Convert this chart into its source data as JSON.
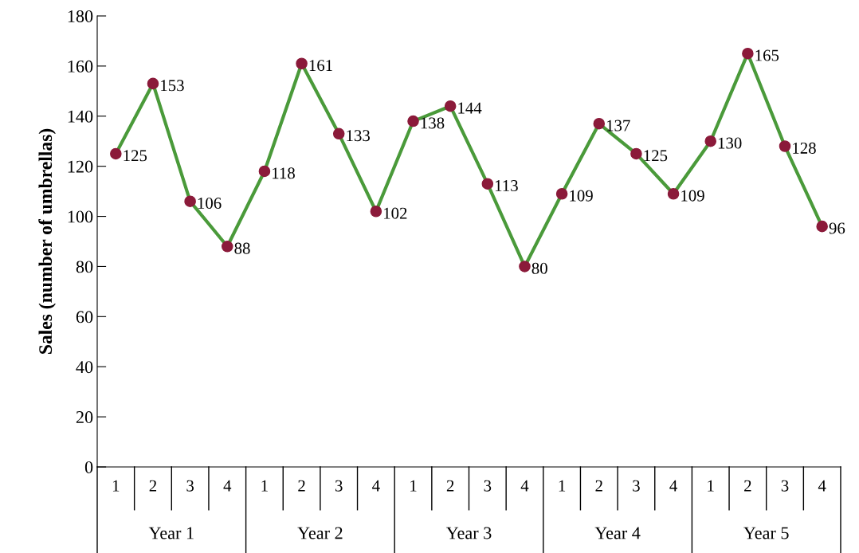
{
  "chart_data": {
    "type": "line",
    "ylabel": "Sales (number of umbrellas)",
    "categories": [
      "1",
      "2",
      "3",
      "4",
      "1",
      "2",
      "3",
      "4",
      "1",
      "2",
      "3",
      "4",
      "1",
      "2",
      "3",
      "4",
      "1",
      "2",
      "3",
      "4"
    ],
    "series": [
      {
        "color": "#4a9a3a",
        "colors": [
          "#8b1a3a",
          "#8b1a3a",
          "#8b1a3a",
          "#8b1a3a",
          "#8b1a3a",
          "#8b1a3a",
          "#8b1a3a",
          "#8b1a3a",
          "#8b1a3a",
          "#8b1a3a",
          "#8b1a3a",
          "#8b1a3a",
          "#8b1a3a",
          "#8b1a3a",
          "#8b1a3a",
          "#8b1a3a",
          "#8b1a3a",
          "#8b1a3a",
          "#8b1a3a",
          "#8b1a3a"
        ],
        "values": [
          125,
          153,
          106,
          88,
          118,
          161,
          133,
          102,
          138,
          144,
          113,
          80,
          109,
          137,
          125,
          109,
          130,
          165,
          128,
          96
        ]
      }
    ],
    "ylim": [
      0,
      180
    ],
    "yticks": [
      0,
      20,
      40,
      60,
      80,
      100,
      120,
      140,
      160,
      180
    ],
    "annotations": [
      "Year 1",
      "Year 2",
      "Year 3",
      "Year 4",
      "Year 5"
    ],
    "data_labels": true,
    "marker": "circle",
    "line_style": "solid",
    "grid": false,
    "legend": false
  }
}
